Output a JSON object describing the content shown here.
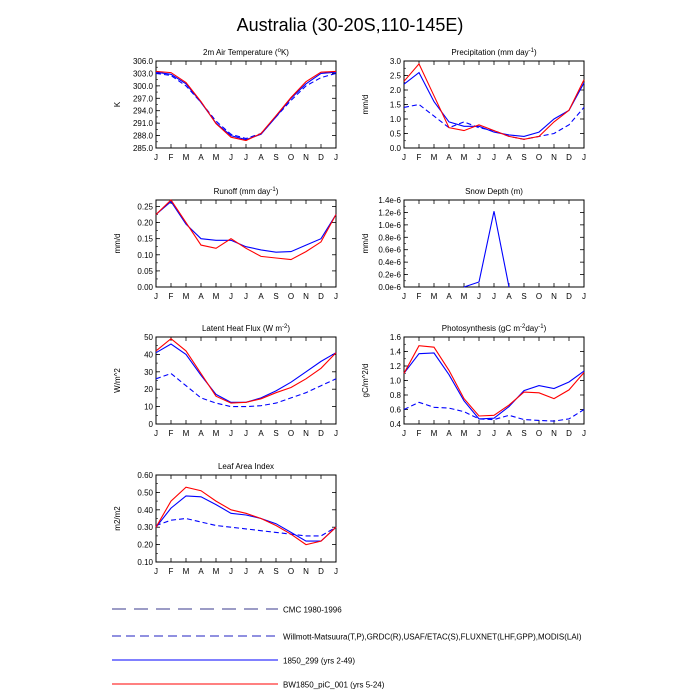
{
  "figure": {
    "title": "Australia (30-20S,110-145E)"
  },
  "legend": [
    {
      "label": "CMC 1980-1996",
      "color": "#3a3a8c",
      "dash": "long"
    },
    {
      "label": "Willmott-Matsuura(T,P),GRDC(R),USAF/ETAC(S),FLUXNET(LHF,GPP),MODIS(LAI)",
      "color": "#2020c0",
      "dash": "medium"
    },
    {
      "label": "1850_299 (yrs 2-49)",
      "color": "#0000ff",
      "dash": "solid"
    },
    {
      "label": "BW1850_piC_001 (yrs 5-24)",
      "color": "#ff0000",
      "dash": "solid"
    }
  ],
  "chart_data": [
    {
      "type": "line",
      "title": "2m Air Temperature (°K)",
      "ylabel": "K",
      "x": [
        "J",
        "F",
        "M",
        "A",
        "M",
        "J",
        "J",
        "A",
        "S",
        "O",
        "N",
        "D",
        "J"
      ],
      "ylim": [
        285.0,
        306.0
      ],
      "yticks": [
        "285.0",
        "288.0",
        "291.0",
        "294.0",
        "297.0",
        "300.0",
        "303.0",
        "306.0"
      ],
      "series": [
        {
          "style": "obs",
          "values": [
            303.0,
            302.5,
            300.0,
            296.0,
            291.5,
            288.3,
            287.3,
            288.5,
            292.5,
            296.5,
            300.0,
            302.0,
            303.0
          ]
        },
        {
          "style": "blue",
          "values": [
            303.3,
            302.8,
            300.5,
            296.0,
            291.0,
            288.0,
            287.0,
            288.3,
            292.5,
            297.0,
            300.5,
            303.0,
            303.3
          ]
        },
        {
          "style": "red",
          "values": [
            303.5,
            303.2,
            300.8,
            296.2,
            290.9,
            287.6,
            286.8,
            288.5,
            292.8,
            297.2,
            301.0,
            303.3,
            303.5
          ]
        }
      ]
    },
    {
      "type": "line",
      "title": "Precipitation (mm day-1)",
      "ylabel": "mm/d",
      "x": [
        "J",
        "F",
        "M",
        "A",
        "M",
        "J",
        "J",
        "A",
        "S",
        "O",
        "N",
        "D",
        "J"
      ],
      "ylim": [
        0.0,
        3.0
      ],
      "yticks": [
        "0.0",
        "0.5",
        "1.0",
        "1.5",
        "2.0",
        "2.5",
        "3.0"
      ],
      "series": [
        {
          "style": "obs",
          "values": [
            1.4,
            1.5,
            1.1,
            0.7,
            0.9,
            0.7,
            0.6,
            0.4,
            0.3,
            0.4,
            0.5,
            0.8,
            1.4
          ]
        },
        {
          "style": "blue",
          "values": [
            2.2,
            2.6,
            1.6,
            0.9,
            0.75,
            0.75,
            0.55,
            0.45,
            0.4,
            0.55,
            1.0,
            1.3,
            2.25
          ]
        },
        {
          "style": "red",
          "values": [
            2.3,
            2.9,
            1.8,
            0.7,
            0.6,
            0.8,
            0.6,
            0.4,
            0.3,
            0.4,
            0.9,
            1.3,
            2.35
          ]
        }
      ]
    },
    {
      "type": "line",
      "title": "Runoff (mm day-1)",
      "ylabel": "mm/d",
      "x": [
        "J",
        "F",
        "M",
        "A",
        "M",
        "J",
        "J",
        "A",
        "S",
        "O",
        "N",
        "D",
        "J"
      ],
      "ylim": [
        0.0,
        0.27
      ],
      "yticks": [
        "0.00",
        "0.05",
        "0.10",
        "0.15",
        "0.20",
        "0.25"
      ],
      "series": [
        {
          "style": "blue",
          "values": [
            0.225,
            0.265,
            0.195,
            0.15,
            0.145,
            0.145,
            0.125,
            0.115,
            0.108,
            0.11,
            0.13,
            0.15,
            0.225
          ]
        },
        {
          "style": "red",
          "values": [
            0.225,
            0.27,
            0.2,
            0.13,
            0.12,
            0.15,
            0.12,
            0.095,
            0.09,
            0.085,
            0.11,
            0.14,
            0.225
          ]
        }
      ]
    },
    {
      "type": "line",
      "title": "Snow Depth (m)",
      "ylabel": "mm/d",
      "x": [
        "J",
        "F",
        "M",
        "A",
        "M",
        "J",
        "J",
        "A",
        "S",
        "O",
        "N",
        "D",
        "J"
      ],
      "ylim": [
        0.0,
        1.4e-06
      ],
      "yticks": [
        "0.0e-6",
        "0.2e-6",
        "0.4e-6",
        "0.6e-6",
        "0.8e-6",
        "1.0e-6",
        "1.2e-6",
        "1.4e-6"
      ],
      "series": [
        {
          "style": "blue",
          "values": [
            null,
            null,
            null,
            null,
            0.0,
            8e-08,
            1.22e-06,
            0.0,
            null,
            null,
            null,
            null,
            null
          ]
        }
      ]
    },
    {
      "type": "line",
      "title": "Latent Heat Flux (W m-2)",
      "ylabel": "W/m^2",
      "x": [
        "J",
        "F",
        "M",
        "A",
        "M",
        "J",
        "J",
        "A",
        "S",
        "O",
        "N",
        "D",
        "J"
      ],
      "ylim": [
        0,
        50
      ],
      "yticks": [
        "0",
        "10",
        "20",
        "30",
        "40",
        "50"
      ],
      "series": [
        {
          "style": "obs",
          "values": [
            26,
            29,
            22,
            15,
            12,
            10,
            10,
            10.5,
            12,
            15,
            18,
            22,
            26
          ]
        },
        {
          "style": "blue",
          "values": [
            41,
            46,
            40,
            28,
            17,
            12.5,
            12.5,
            15,
            19,
            24,
            30,
            36,
            41
          ]
        },
        {
          "style": "red",
          "values": [
            42,
            49,
            42,
            29,
            16,
            12,
            12.5,
            14.5,
            18,
            21,
            26,
            32,
            41
          ]
        }
      ]
    },
    {
      "type": "line",
      "title": "Photosynthesis (gC m-2day-1)",
      "ylabel": "gC/m^2/d",
      "x": [
        "J",
        "F",
        "M",
        "A",
        "M",
        "J",
        "J",
        "A",
        "S",
        "O",
        "N",
        "D",
        "J"
      ],
      "ylim": [
        0.4,
        1.6
      ],
      "yticks": [
        "0.4",
        "0.6",
        "0.8",
        "1.0",
        "1.2",
        "1.4",
        "1.6"
      ],
      "series": [
        {
          "style": "obs",
          "values": [
            0.6,
            0.7,
            0.63,
            0.62,
            0.57,
            0.47,
            0.46,
            0.52,
            0.46,
            0.45,
            0.44,
            0.47,
            0.6
          ]
        },
        {
          "style": "blue",
          "values": [
            1.1,
            1.37,
            1.38,
            1.08,
            0.72,
            0.47,
            0.48,
            0.64,
            0.86,
            0.93,
            0.89,
            0.98,
            1.13
          ]
        },
        {
          "style": "red",
          "values": [
            1.1,
            1.48,
            1.46,
            1.14,
            0.75,
            0.51,
            0.52,
            0.66,
            0.84,
            0.83,
            0.75,
            0.87,
            1.11
          ]
        }
      ]
    },
    {
      "type": "line",
      "title": "Leaf Area Index",
      "ylabel": "m2/m2",
      "x": [
        "J",
        "F",
        "M",
        "A",
        "M",
        "J",
        "J",
        "A",
        "S",
        "O",
        "N",
        "D",
        "J"
      ],
      "ylim": [
        0.1,
        0.6
      ],
      "yticks": [
        "0.10",
        "0.20",
        "0.30",
        "0.40",
        "0.50",
        "0.60"
      ],
      "series": [
        {
          "style": "obs",
          "values": [
            0.31,
            0.34,
            0.35,
            0.33,
            0.31,
            0.3,
            0.29,
            0.28,
            0.27,
            0.26,
            0.25,
            0.25,
            0.3
          ]
        },
        {
          "style": "blue",
          "values": [
            0.3,
            0.41,
            0.48,
            0.475,
            0.43,
            0.38,
            0.37,
            0.35,
            0.32,
            0.27,
            0.22,
            0.22,
            0.3
          ]
        },
        {
          "style": "red",
          "values": [
            0.3,
            0.45,
            0.53,
            0.51,
            0.45,
            0.4,
            0.38,
            0.35,
            0.31,
            0.26,
            0.2,
            0.22,
            0.3
          ]
        }
      ]
    }
  ]
}
